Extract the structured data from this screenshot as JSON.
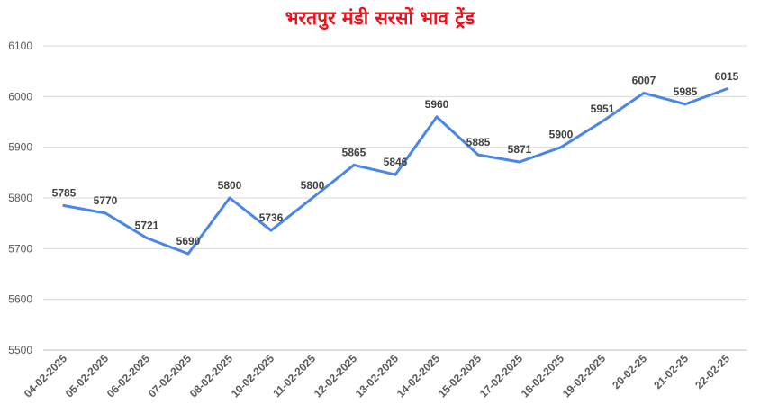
{
  "chart_data": {
    "type": "line",
    "title": "भरतपुर मंडी सरसों भाव ट्रेंड",
    "xlabel": "",
    "ylabel": "",
    "categories": [
      "04-02-2025",
      "05-02-2025",
      "06-02-2025",
      "07-02-2025",
      "08-02-2025",
      "10-02-2025",
      "11-02-2025",
      "12-02-2025",
      "13-02-2025",
      "14-02-2025",
      "15-02-2025",
      "17-02-2025",
      "18-02-2025",
      "19-02-2025",
      "20-02-25",
      "21-02-25",
      "22-02-25"
    ],
    "series": [
      {
        "values": [
          5785,
          5770,
          5721,
          5690,
          5800,
          5736,
          5800,
          5865,
          5846,
          5960,
          5885,
          5871,
          5900,
          5951,
          6007,
          5985,
          6015
        ]
      }
    ],
    "ylim": [
      5500,
      6100
    ],
    "yticks": [
      5500,
      5600,
      5700,
      5800,
      5900,
      6000,
      6100
    ],
    "grid": true,
    "legend": "none",
    "line_color": "#4a86e8"
  }
}
